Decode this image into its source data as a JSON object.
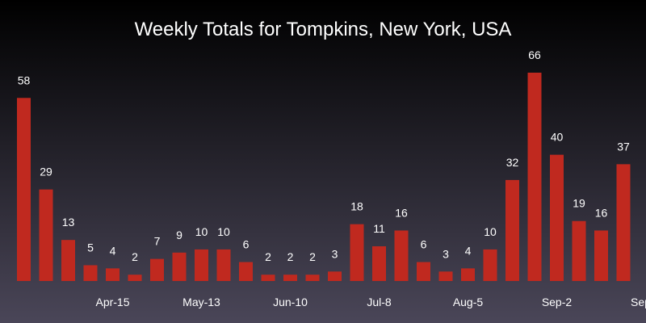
{
  "chart_data": {
    "type": "bar",
    "title": "Weekly Totals for Tompkins, New York, USA",
    "categories": [
      null,
      null,
      null,
      null,
      "Apr-15",
      null,
      null,
      null,
      "May-13",
      null,
      null,
      null,
      "Jun-10",
      null,
      null,
      null,
      "Jul-8",
      null,
      null,
      null,
      "Aug-5",
      null,
      null,
      null,
      "Sep-2",
      null,
      null,
      null
    ],
    "values": [
      58,
      29,
      13,
      5,
      4,
      2,
      7,
      9,
      10,
      10,
      6,
      2,
      2,
      2,
      3,
      18,
      11,
      16,
      6,
      3,
      4,
      10,
      32,
      66,
      40,
      19,
      16,
      37
    ],
    "x_edge_label": "Sep",
    "color": "#c0291f"
  }
}
